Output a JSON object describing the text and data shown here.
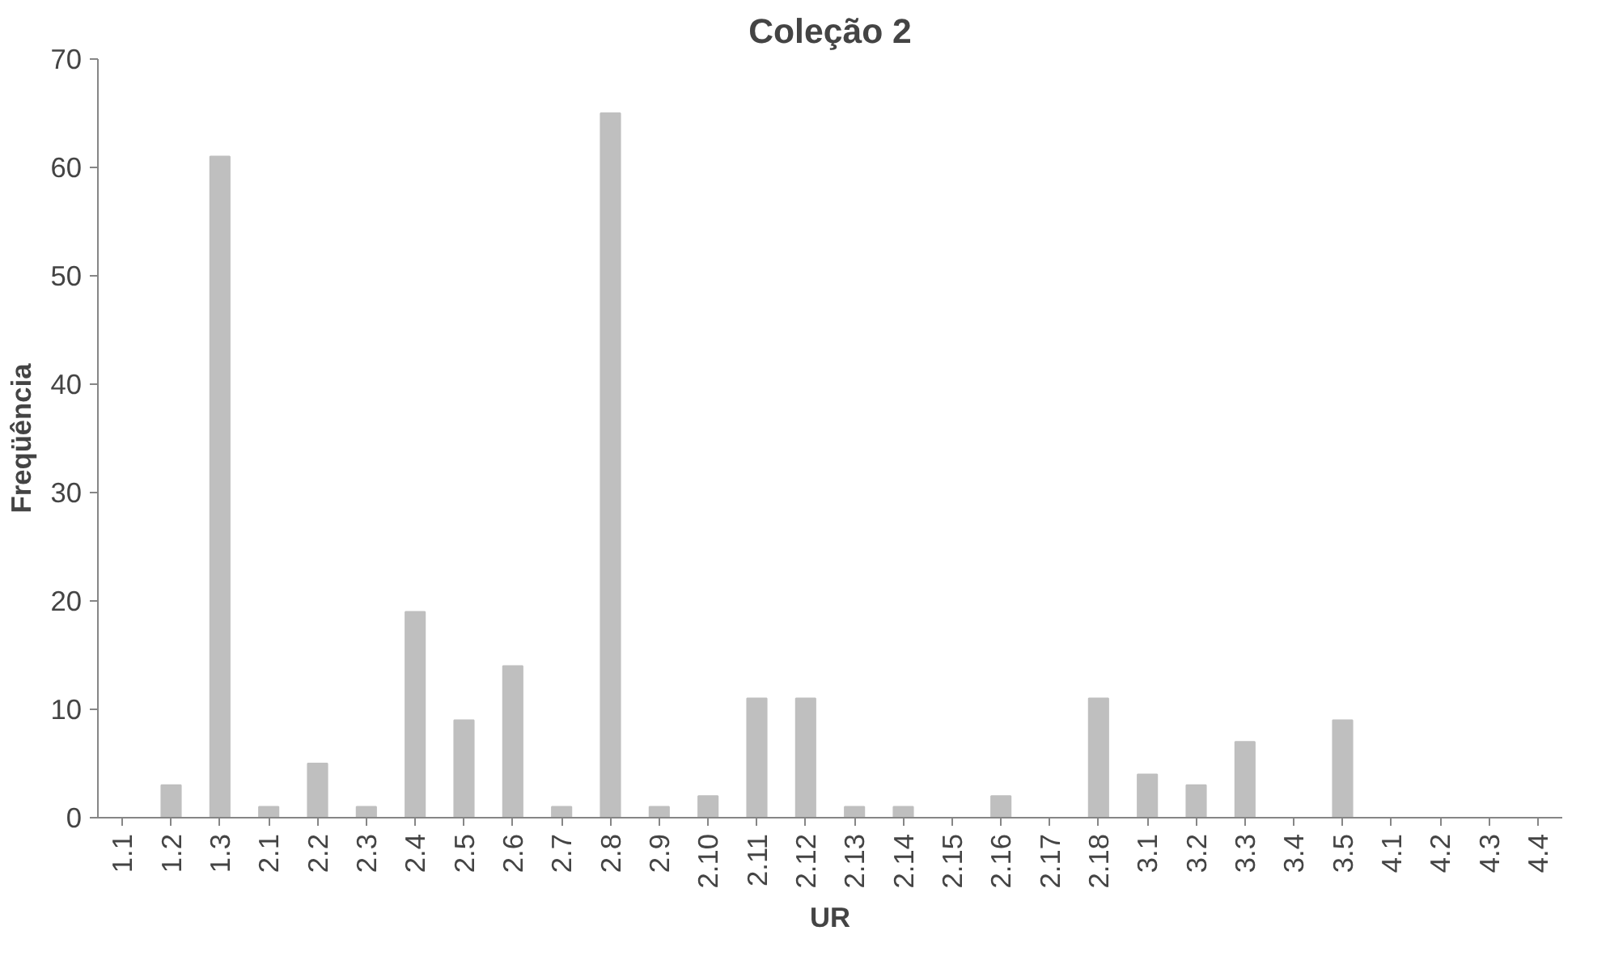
{
  "chart_data": {
    "type": "bar",
    "title": "Coleção 2",
    "xlabel": "UR",
    "ylabel": "Freqüência",
    "categories": [
      "1.1",
      "1.2",
      "1.3",
      "2.1",
      "2.2",
      "2.3",
      "2.4",
      "2.5",
      "2.6",
      "2.7",
      "2.8",
      "2.9",
      "2.10",
      "2.11",
      "2.12",
      "2.13",
      "2.14",
      "2.15",
      "2.16",
      "2.17",
      "2.18",
      "3.1",
      "3.2",
      "3.3",
      "3.4",
      "3.5",
      "4.1",
      "4.2",
      "4.3",
      "4.4"
    ],
    "values": [
      0,
      3,
      61,
      1,
      5,
      1,
      19,
      9,
      14,
      1,
      65,
      1,
      2,
      11,
      11,
      1,
      1,
      0,
      2,
      0,
      11,
      4,
      3,
      7,
      0,
      9,
      0,
      0,
      0,
      0
    ],
    "color": "#bfbfbf",
    "ylim": [
      0,
      70
    ],
    "yticks": [
      0,
      10,
      20,
      30,
      40,
      50,
      60,
      70
    ],
    "grid": false
  }
}
